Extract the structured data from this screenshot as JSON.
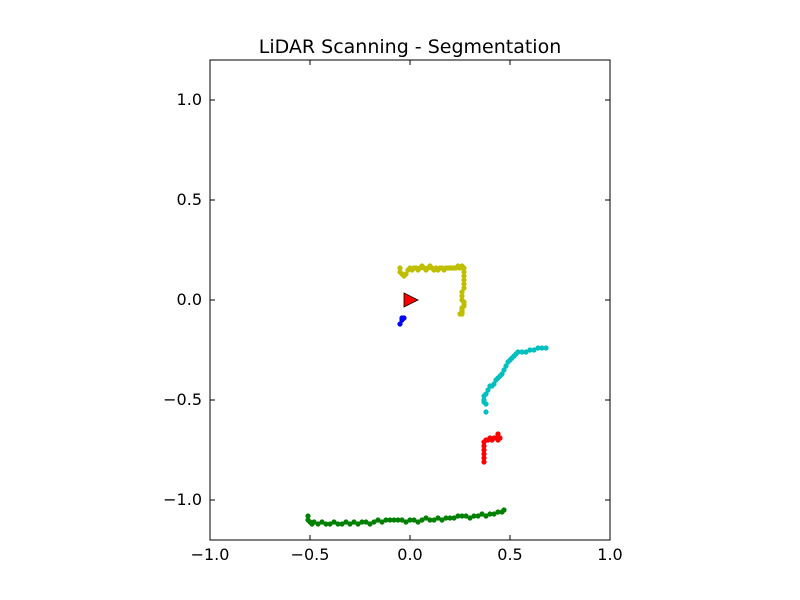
{
  "chart_data": {
    "type": "scatter",
    "title": "LiDAR Scanning - Segmentation",
    "xlabel": "",
    "ylabel": "",
    "xlim": [
      -1.0,
      1.0
    ],
    "ylim": [
      -1.2,
      1.2
    ],
    "grid": false,
    "x_ticks": [
      "−1.0",
      "−0.5",
      "0.0",
      "0.5",
      "1.0"
    ],
    "x_tick_values": [
      -1.0,
      -0.5,
      0.0,
      0.5,
      1.0
    ],
    "y_ticks": [
      "1.0",
      "0.5",
      "0.0",
      "−0.5",
      "−1.0"
    ],
    "y_tick_values": [
      1.0,
      0.5,
      0.0,
      -0.5,
      -1.0
    ],
    "robot": {
      "x": 0.0,
      "y": 0.0,
      "color": "#ff0000",
      "marker": "triangle-right"
    },
    "series": [
      {
        "color": "#bfbf00",
        "points": [
          [
            -0.05,
            0.16
          ],
          [
            -0.05,
            0.14
          ],
          [
            -0.04,
            0.13
          ],
          [
            -0.03,
            0.12
          ],
          [
            -0.02,
            0.13
          ],
          [
            -0.01,
            0.15
          ],
          [
            0.0,
            0.16
          ],
          [
            0.01,
            0.15
          ],
          [
            0.02,
            0.16
          ],
          [
            0.03,
            0.16
          ],
          [
            0.04,
            0.15
          ],
          [
            0.05,
            0.16
          ],
          [
            0.06,
            0.17
          ],
          [
            0.07,
            0.16
          ],
          [
            0.08,
            0.15
          ],
          [
            0.09,
            0.16
          ],
          [
            0.1,
            0.17
          ],
          [
            0.11,
            0.16
          ],
          [
            0.12,
            0.15
          ],
          [
            0.13,
            0.16
          ],
          [
            0.14,
            0.15
          ],
          [
            0.15,
            0.16
          ],
          [
            0.16,
            0.16
          ],
          [
            0.17,
            0.15
          ],
          [
            0.18,
            0.16
          ],
          [
            0.19,
            0.16
          ],
          [
            0.2,
            0.16
          ],
          [
            0.21,
            0.16
          ],
          [
            0.22,
            0.16
          ],
          [
            0.23,
            0.16
          ],
          [
            0.24,
            0.17
          ],
          [
            0.25,
            0.16
          ],
          [
            0.26,
            0.17
          ],
          [
            0.27,
            0.16
          ],
          [
            0.27,
            0.14
          ],
          [
            0.27,
            0.12
          ],
          [
            0.27,
            0.1
          ],
          [
            0.27,
            0.08
          ],
          [
            0.27,
            0.06
          ],
          [
            0.26,
            0.04
          ],
          [
            0.26,
            0.02
          ],
          [
            0.26,
            0.0
          ],
          [
            0.27,
            -0.01
          ],
          [
            0.27,
            -0.02
          ],
          [
            0.27,
            -0.03
          ],
          [
            0.26,
            -0.04
          ],
          [
            0.26,
            -0.05
          ],
          [
            0.26,
            -0.06
          ],
          [
            0.25,
            -0.07
          ],
          [
            0.26,
            -0.07
          ]
        ]
      },
      {
        "color": "#0000ff",
        "points": [
          [
            -0.03,
            -0.09
          ],
          [
            -0.04,
            -0.09
          ],
          [
            -0.04,
            -0.1
          ],
          [
            -0.05,
            -0.12
          ]
        ]
      },
      {
        "color": "#00bfbf",
        "points": [
          [
            0.68,
            -0.24
          ],
          [
            0.66,
            -0.24
          ],
          [
            0.64,
            -0.24
          ],
          [
            0.62,
            -0.25
          ],
          [
            0.6,
            -0.25
          ],
          [
            0.58,
            -0.26
          ],
          [
            0.56,
            -0.26
          ],
          [
            0.54,
            -0.26
          ],
          [
            0.53,
            -0.27
          ],
          [
            0.52,
            -0.28
          ],
          [
            0.51,
            -0.29
          ],
          [
            0.5,
            -0.3
          ],
          [
            0.49,
            -0.31
          ],
          [
            0.48,
            -0.33
          ],
          [
            0.47,
            -0.35
          ],
          [
            0.46,
            -0.37
          ],
          [
            0.45,
            -0.38
          ],
          [
            0.44,
            -0.39
          ],
          [
            0.43,
            -0.4
          ],
          [
            0.42,
            -0.42
          ],
          [
            0.41,
            -0.43
          ],
          [
            0.4,
            -0.43
          ],
          [
            0.39,
            -0.45
          ],
          [
            0.38,
            -0.47
          ],
          [
            0.37,
            -0.48
          ],
          [
            0.37,
            -0.5
          ],
          [
            0.37,
            -0.51
          ],
          [
            0.38,
            -0.52
          ],
          [
            0.38,
            -0.56
          ]
        ]
      },
      {
        "color": "#ff0000",
        "points": [
          [
            0.44,
            -0.67
          ],
          [
            0.45,
            -0.69
          ],
          [
            0.44,
            -0.7
          ],
          [
            0.43,
            -0.69
          ],
          [
            0.42,
            -0.69
          ],
          [
            0.41,
            -0.7
          ],
          [
            0.4,
            -0.69
          ],
          [
            0.39,
            -0.7
          ],
          [
            0.38,
            -0.7
          ],
          [
            0.37,
            -0.71
          ],
          [
            0.37,
            -0.73
          ],
          [
            0.37,
            -0.75
          ],
          [
            0.37,
            -0.77
          ],
          [
            0.37,
            -0.79
          ],
          [
            0.37,
            -0.81
          ]
        ]
      },
      {
        "color": "#008000",
        "points": [
          [
            -0.51,
            -1.08
          ],
          [
            -0.51,
            -1.1
          ],
          [
            -0.5,
            -1.11
          ],
          [
            -0.49,
            -1.12
          ],
          [
            -0.48,
            -1.11
          ],
          [
            -0.46,
            -1.12
          ],
          [
            -0.44,
            -1.11
          ],
          [
            -0.42,
            -1.12
          ],
          [
            -0.4,
            -1.12
          ],
          [
            -0.38,
            -1.11
          ],
          [
            -0.36,
            -1.12
          ],
          [
            -0.34,
            -1.12
          ],
          [
            -0.32,
            -1.11
          ],
          [
            -0.3,
            -1.12
          ],
          [
            -0.28,
            -1.11
          ],
          [
            -0.26,
            -1.12
          ],
          [
            -0.24,
            -1.11
          ],
          [
            -0.22,
            -1.11
          ],
          [
            -0.2,
            -1.12
          ],
          [
            -0.18,
            -1.11
          ],
          [
            -0.16,
            -1.1
          ],
          [
            -0.14,
            -1.11
          ],
          [
            -0.12,
            -1.1
          ],
          [
            -0.1,
            -1.1
          ],
          [
            -0.08,
            -1.1
          ],
          [
            -0.06,
            -1.1
          ],
          [
            -0.04,
            -1.1
          ],
          [
            -0.02,
            -1.11
          ],
          [
            0.0,
            -1.1
          ],
          [
            0.02,
            -1.1
          ],
          [
            0.04,
            -1.11
          ],
          [
            0.06,
            -1.1
          ],
          [
            0.08,
            -1.09
          ],
          [
            0.1,
            -1.1
          ],
          [
            0.12,
            -1.1
          ],
          [
            0.14,
            -1.09
          ],
          [
            0.16,
            -1.1
          ],
          [
            0.18,
            -1.09
          ],
          [
            0.2,
            -1.09
          ],
          [
            0.22,
            -1.09
          ],
          [
            0.24,
            -1.08
          ],
          [
            0.26,
            -1.08
          ],
          [
            0.28,
            -1.08
          ],
          [
            0.3,
            -1.09
          ],
          [
            0.32,
            -1.08
          ],
          [
            0.34,
            -1.08
          ],
          [
            0.36,
            -1.07
          ],
          [
            0.38,
            -1.08
          ],
          [
            0.4,
            -1.07
          ],
          [
            0.42,
            -1.07
          ],
          [
            0.44,
            -1.06
          ],
          [
            0.46,
            -1.06
          ],
          [
            0.47,
            -1.05
          ]
        ]
      }
    ]
  }
}
